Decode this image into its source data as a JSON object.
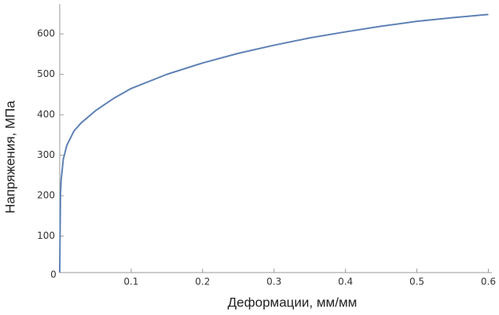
{
  "chart_data": {
    "type": "line",
    "x_label": "Деформации, мм/мм",
    "y_label": "Напряжения, МПа",
    "series": [
      {
        "color": "#5e81b5",
        "x": [
          0,
          0.001,
          0.002,
          0.005,
          0.01,
          0.02,
          0.03,
          0.05,
          0.075,
          0.1,
          0.15,
          0.2,
          0.25,
          0.3,
          0.35,
          0.4,
          0.45,
          0.5,
          0.55,
          0.6
        ],
        "values": [
          10,
          200,
          240,
          290,
          325,
          360,
          380,
          410,
          440,
          465,
          500,
          528,
          552,
          572,
          590,
          605,
          619,
          631,
          640,
          648
        ]
      }
    ],
    "xlim": [
      0,
      0.605
    ],
    "ylim": [
      10,
      675
    ],
    "xticks": [
      0,
      0.1,
      0.2,
      0.3,
      0.4,
      0.5,
      0.6
    ],
    "yticks": [
      100,
      200,
      300,
      400,
      500,
      600
    ]
  }
}
